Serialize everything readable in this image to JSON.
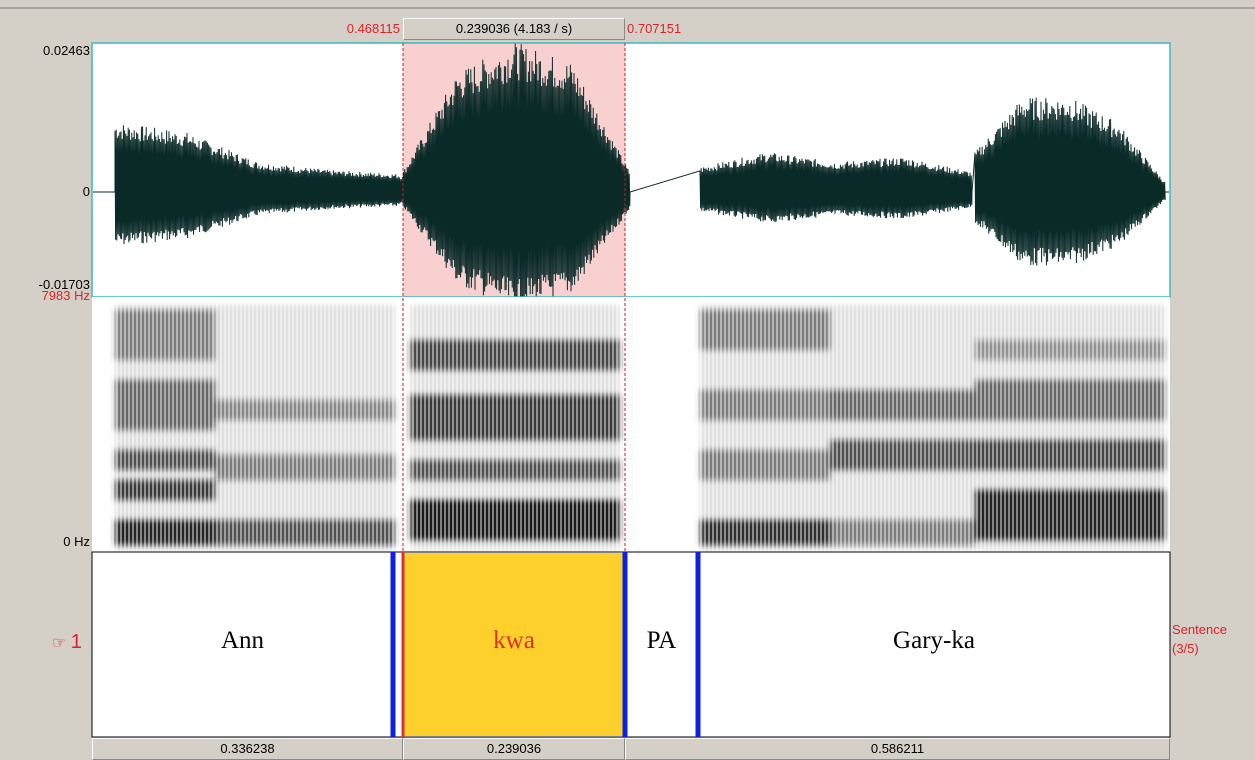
{
  "selection": {
    "start": "0.468115",
    "duration": "0.239036 (4.183 / s)",
    "end": "0.707151"
  },
  "waveform": {
    "max": "0.02463",
    "zero": "0",
    "min": "-0.01703"
  },
  "spectrogram": {
    "max": "7983 Hz",
    "min": "0 Hz"
  },
  "tier": {
    "number": "1",
    "name": "Sentence",
    "index": "(3/5)",
    "intervals": [
      "Ann",
      "kwa",
      "PA",
      "Gary-ka"
    ]
  },
  "durations": [
    "0.336238",
    "0.239036",
    "0.586211"
  ]
}
